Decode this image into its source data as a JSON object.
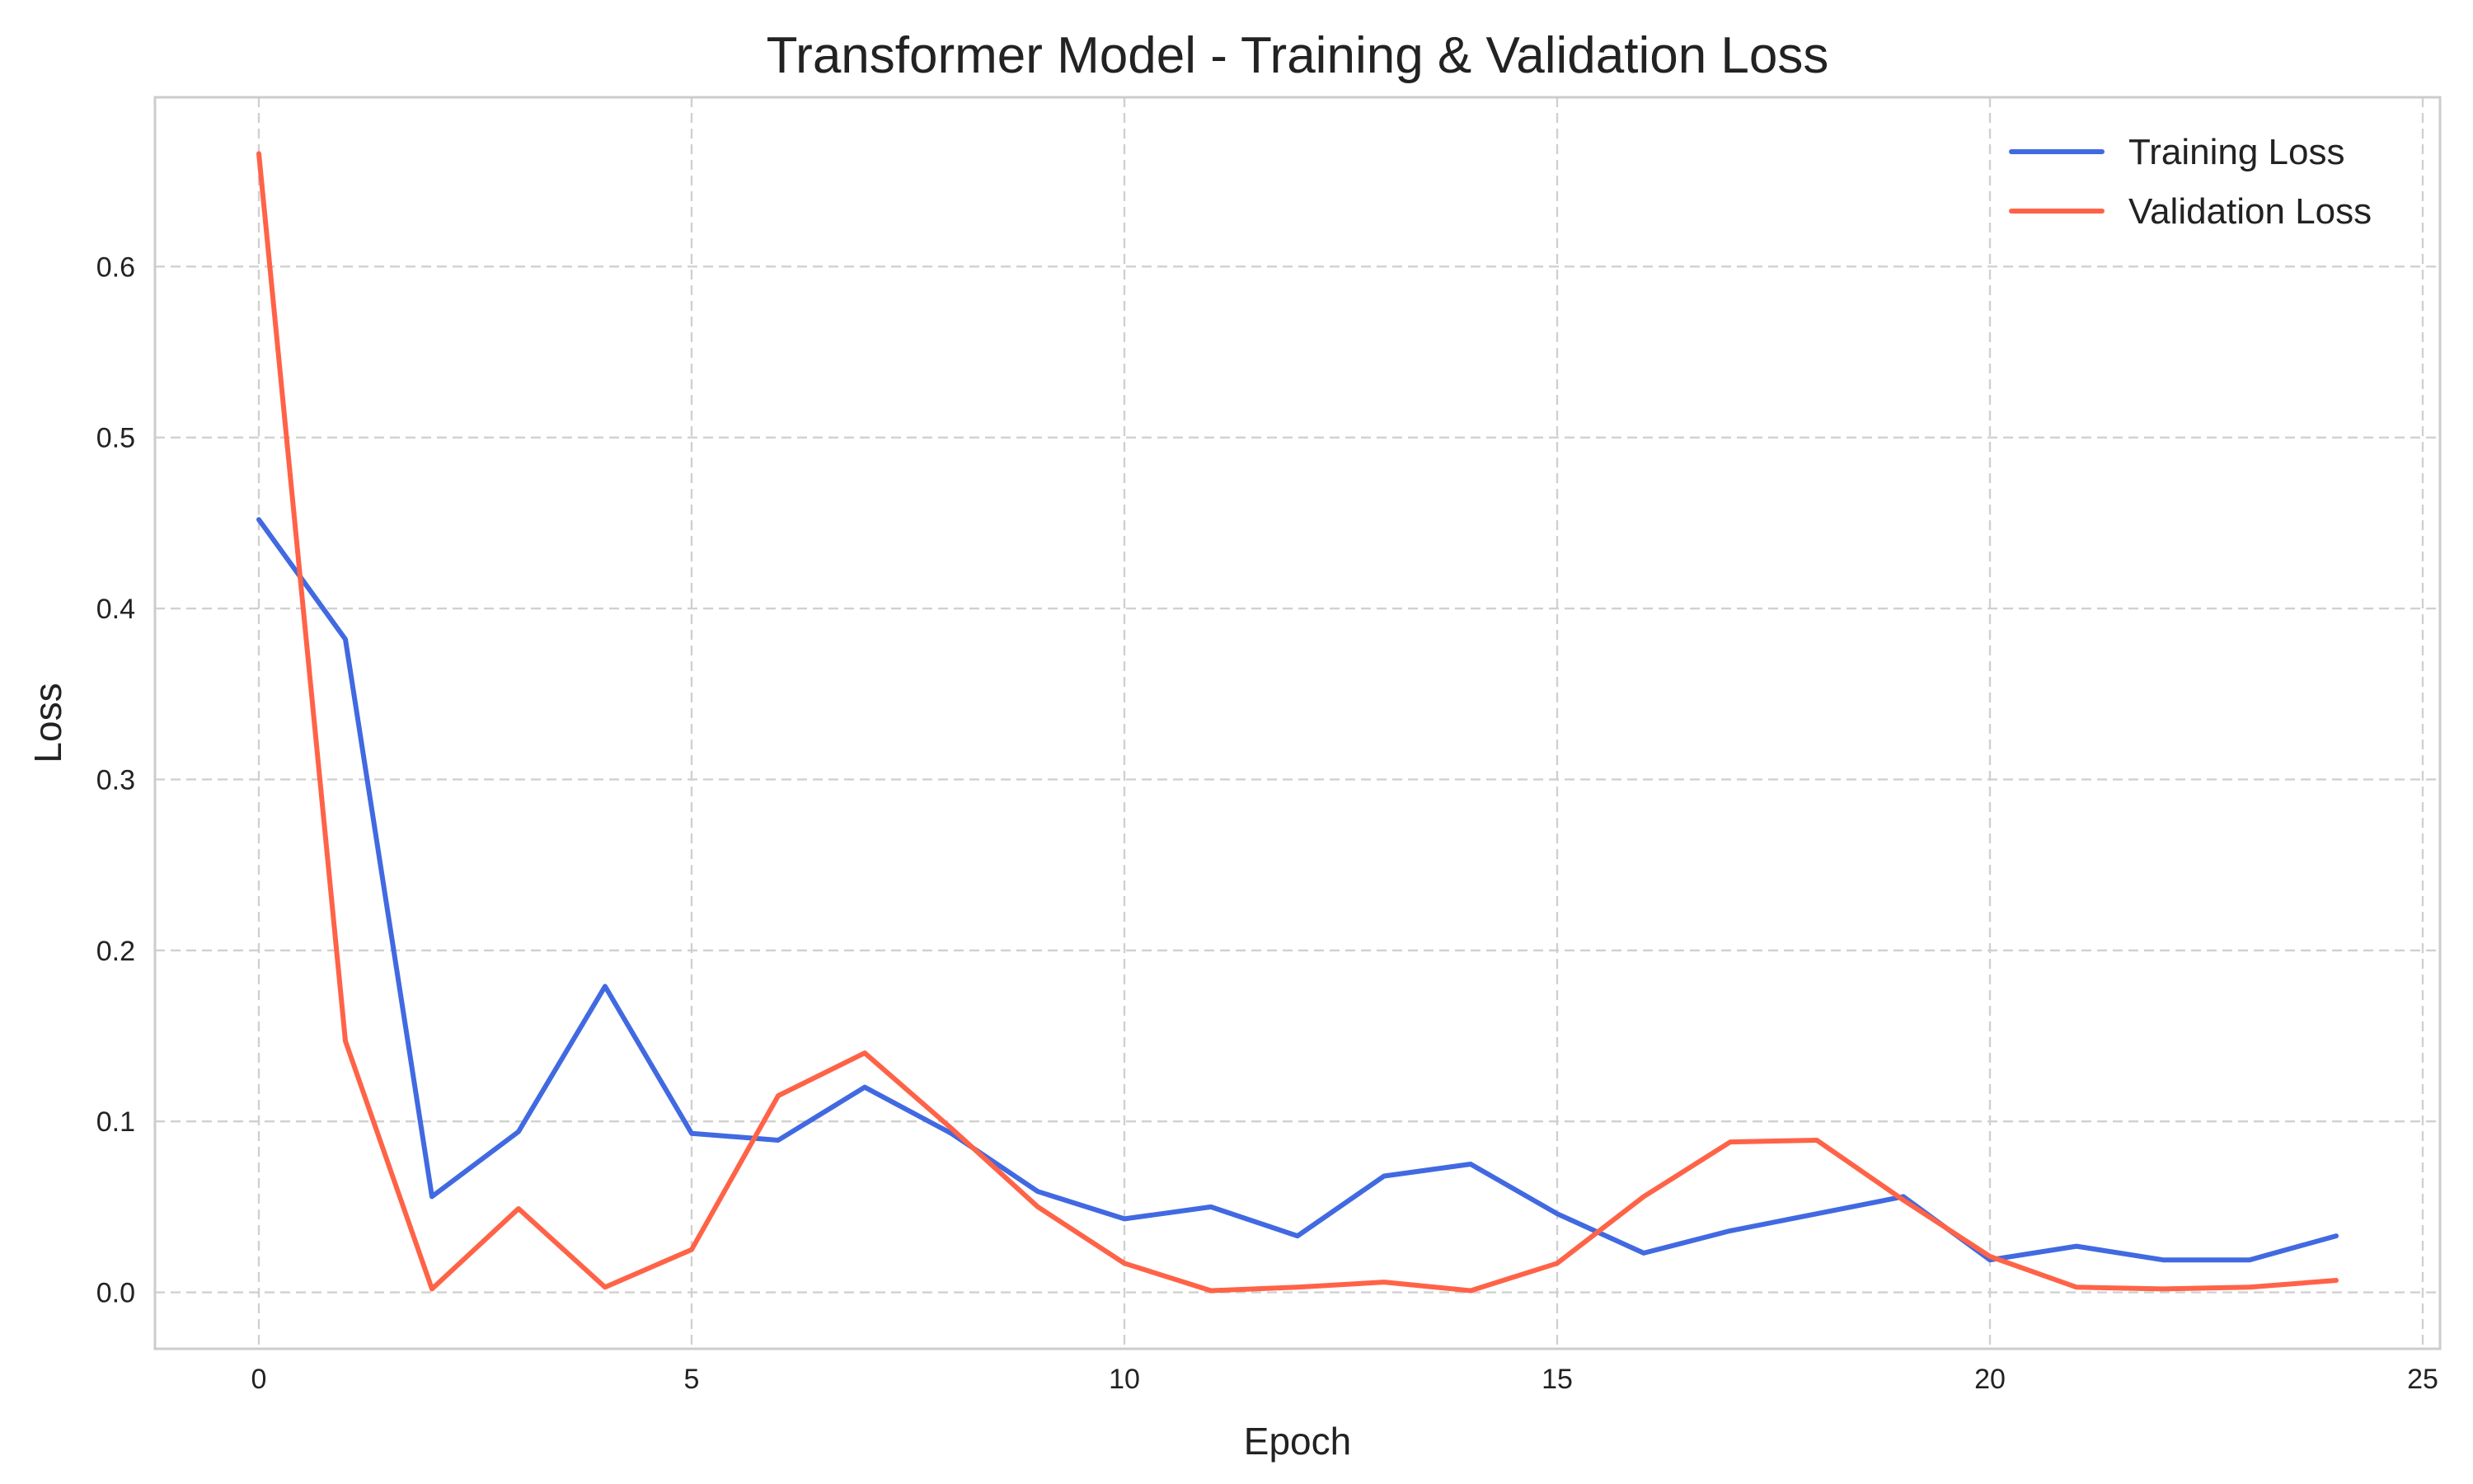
{
  "chart_data": {
    "type": "line",
    "title": "Transformer Model - Training & Validation Loss",
    "xlabel": "Epoch",
    "ylabel": "Loss",
    "x": [
      0,
      1,
      2,
      3,
      4,
      5,
      6,
      7,
      8,
      9,
      10,
      11,
      12,
      13,
      14,
      15,
      16,
      17,
      18,
      19,
      20,
      21,
      22,
      23,
      24
    ],
    "xlim": [
      -1.2,
      25.2
    ],
    "ylim": [
      -0.033,
      0.699
    ],
    "xticks": [
      0,
      5,
      10,
      15,
      20,
      25
    ],
    "xtick_labels": [
      "0",
      "5",
      "10",
      "15",
      "20",
      "25"
    ],
    "yticks": [
      0.0,
      0.1,
      0.2,
      0.3,
      0.4,
      0.5,
      0.6
    ],
    "ytick_labels": [
      "0.0",
      "0.1",
      "0.2",
      "0.3",
      "0.4",
      "0.5",
      "0.6"
    ],
    "grid": true,
    "legend_position": "top-right",
    "series": [
      {
        "name": "Training Loss",
        "color": "#4169E1",
        "values": [
          0.452,
          0.382,
          0.056,
          0.094,
          0.179,
          0.093,
          0.089,
          0.12,
          0.093,
          0.059,
          0.043,
          0.05,
          0.033,
          0.068,
          0.075,
          0.046,
          0.023,
          0.036,
          0.046,
          0.056,
          0.019,
          0.027,
          0.019,
          0.019,
          0.033
        ]
      },
      {
        "name": "Validation Loss",
        "color": "#FF6347",
        "values": [
          0.666,
          0.147,
          0.002,
          0.049,
          0.003,
          0.025,
          0.115,
          0.14,
          0.096,
          0.05,
          0.017,
          0.001,
          0.003,
          0.006,
          0.001,
          0.017,
          0.056,
          0.088,
          0.089,
          0.054,
          0.021,
          0.003,
          0.002,
          0.003,
          0.007
        ]
      }
    ]
  }
}
